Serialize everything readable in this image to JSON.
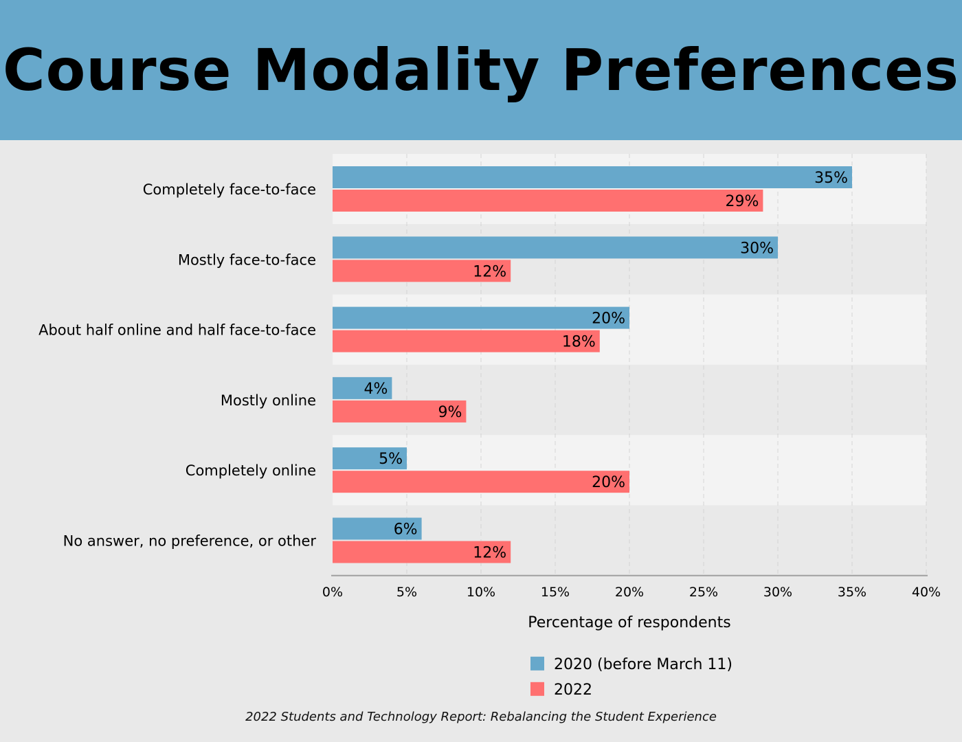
{
  "header": {
    "title": "Course Modality Preferences"
  },
  "colors": {
    "banner": "#67a8cb",
    "series_2020": "#67a8cb",
    "series_2022": "#ff7070",
    "band_light": "#f3f3f3",
    "band_dark": "#e9e9e9"
  },
  "chart_data": {
    "type": "bar",
    "orientation": "horizontal",
    "categories": [
      "Completely face-to-face",
      "Mostly face-to-face",
      "About half online and half face-to-face",
      "Mostly online",
      "Completely online",
      "No answer, no preference, or other"
    ],
    "series": [
      {
        "name": "2020 (before March 11)",
        "values": [
          35,
          30,
          20,
          4,
          5,
          6
        ],
        "labels": [
          "35%",
          "30%",
          "20%",
          "4%",
          "5%",
          "6%"
        ]
      },
      {
        "name": "2022",
        "values": [
          29,
          12,
          18,
          9,
          20,
          12
        ],
        "labels": [
          "29%",
          "12%",
          "18%",
          "9%",
          "20%",
          "12%"
        ]
      }
    ],
    "xlabel": "Percentage of respondents",
    "xlim": [
      0,
      40
    ],
    "xticks": [
      "0%",
      "5%",
      "10%",
      "15%",
      "20%",
      "25%",
      "30%",
      "35%",
      "40%"
    ],
    "grid": "vertical dashed",
    "legend_position": "bottom"
  },
  "source": "2022 Students and Technology Report: Rebalancing the Student Experience"
}
